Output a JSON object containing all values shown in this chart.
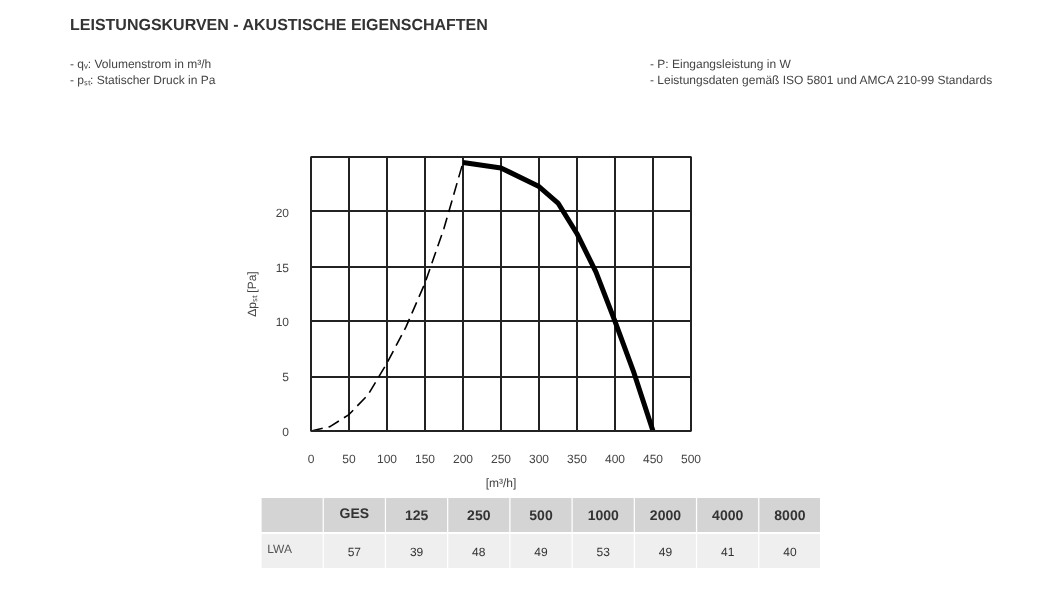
{
  "chart_data": [
    {
      "type": "line",
      "title": "LEISTUNGSKURVEN - AKUSTISCHE EIGENSCHAFTEN",
      "annotations": [
        "- qᵥ: Volumenstrom in m³/h",
        "- pₛₜ: Statischer Druck in Pa",
        "- P: Eingangsleistung in W",
        "- Leistungsdaten gemäß ISO 5801 und AMCA 210-99 Standards"
      ],
      "xlabel": "[m³/h]",
      "ylabel": "Δpₛₜ [Pa]",
      "xlim": [
        0,
        500
      ],
      "xticks": [
        0,
        50,
        100,
        150,
        200,
        250,
        300,
        350,
        400,
        450,
        500
      ],
      "ylim": [
        0,
        25
      ],
      "yticks": [
        0,
        5,
        10,
        15,
        20
      ],
      "grid": true,
      "series": [
        {
          "color": "#000000",
          "line_style": "dashed",
          "x": [
            0,
            25,
            50,
            75,
            100,
            125,
            150,
            175,
            200
          ],
          "values": [
            0,
            0.4,
            1.5,
            3.3,
            6.2,
            9.5,
            13.5,
            18.5,
            24.5
          ]
        },
        {
          "color": "#000000",
          "line_style": "solid",
          "x": [
            200,
            250,
            300,
            325,
            350,
            375,
            400,
            425,
            450
          ],
          "values": [
            24.5,
            24,
            22.3,
            20.8,
            18,
            14.5,
            10,
            5.3,
            0
          ]
        }
      ]
    },
    {
      "type": "other",
      "ylabel": "LWA",
      "categories": [
        "GES",
        "125",
        "250",
        "500",
        "1000",
        "2000",
        "4000",
        "8000"
      ],
      "values": [
        57,
        39,
        48,
        49,
        53,
        49,
        41,
        40
      ],
      "data_labels": true
    }
  ]
}
